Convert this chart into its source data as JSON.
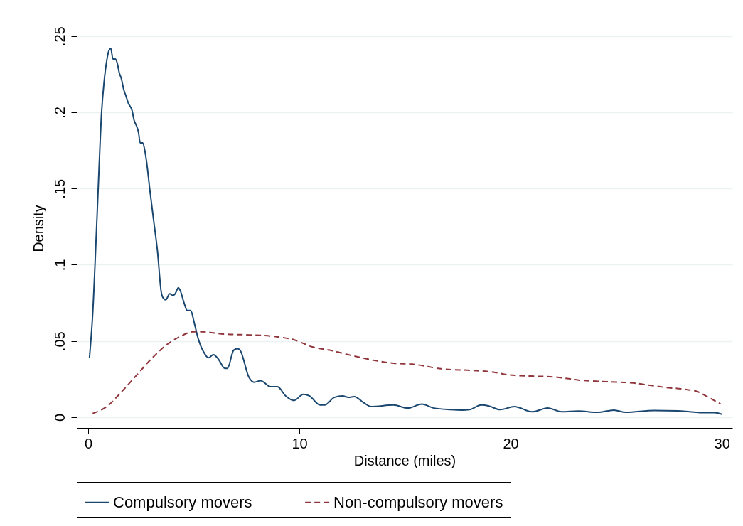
{
  "chart_data": {
    "type": "line",
    "xlabel": "Distance (miles)",
    "ylabel": "Density",
    "xlim": [
      -0.54,
      30.5
    ],
    "xticks": [
      0,
      10,
      20,
      30
    ],
    "ylim": [
      -0.007,
      0.255
    ],
    "yticks": [
      {
        "value": 0,
        "label": "0"
      },
      {
        "value": 0.05,
        "label": ".05"
      },
      {
        "value": 0.1,
        "label": ".1"
      },
      {
        "value": 0.15,
        "label": ".15"
      },
      {
        "value": 0.2,
        "label": ".2"
      },
      {
        "value": 0.25,
        "label": ".25"
      }
    ],
    "grid": "y",
    "legend": "bottom",
    "marker": "none",
    "series": [
      {
        "name": "Compulsory movers",
        "color": "#1a476f",
        "line_style": "solid",
        "x": [
          0.06,
          0.21,
          0.39,
          0.51,
          0.63,
          0.76,
          0.88,
          0.97,
          1.07,
          1.17,
          1.29,
          1.38,
          1.47,
          1.57,
          1.68,
          1.78,
          1.9,
          2.08,
          2.17,
          2.29,
          2.38,
          2.46,
          2.58,
          2.68,
          2.77,
          2.92,
          3.1,
          3.28,
          3.46,
          3.56,
          3.67,
          3.86,
          4.0,
          4.12,
          4.27,
          4.36,
          4.54,
          4.69,
          4.85,
          5.02,
          5.2,
          5.5,
          5.69,
          5.93,
          6.17,
          6.47,
          6.59,
          6.89,
          7.07,
          7.19,
          7.62,
          7.86,
          8.16,
          8.64,
          8.96,
          9.35,
          9.74,
          10.19,
          10.47,
          10.98,
          11.2,
          11.65,
          12.04,
          12.32,
          12.6,
          13.0,
          13.39,
          14.46,
          15.13,
          15.8,
          16.36,
          17.15,
          17.71,
          18.05,
          18.61,
          18.95,
          19.5,
          20.18,
          21.02,
          21.75,
          22.42,
          23.21,
          24.11,
          24.89,
          25.45,
          26.8,
          27.92,
          28.48,
          29.05,
          29.66,
          30.0
        ],
        "values": [
          0.039,
          0.067,
          0.122,
          0.162,
          0.199,
          0.221,
          0.234,
          0.24,
          0.242,
          0.235,
          0.235,
          0.232,
          0.226,
          0.222,
          0.215,
          0.211,
          0.206,
          0.201,
          0.195,
          0.191,
          0.187,
          0.18,
          0.18,
          0.175,
          0.167,
          0.149,
          0.129,
          0.109,
          0.082,
          0.078,
          0.077,
          0.081,
          0.08,
          0.081,
          0.085,
          0.083,
          0.075,
          0.07,
          0.07,
          0.062,
          0.052,
          0.042,
          0.039,
          0.041,
          0.038,
          0.032,
          0.032,
          0.044,
          0.045,
          0.044,
          0.026,
          0.023,
          0.024,
          0.02,
          0.02,
          0.014,
          0.011,
          0.015,
          0.014,
          0.008,
          0.008,
          0.013,
          0.014,
          0.013,
          0.0135,
          0.01,
          0.007,
          0.008,
          0.006,
          0.0086,
          0.006,
          0.005,
          0.0047,
          0.005,
          0.008,
          0.0075,
          0.005,
          0.007,
          0.0036,
          0.006,
          0.0036,
          0.0041,
          0.0032,
          0.0047,
          0.0032,
          0.0044,
          0.0042,
          0.0036,
          0.003,
          0.003,
          0.002
        ]
      },
      {
        "name": "Non-compulsory movers",
        "color": "#90353b",
        "line_style": "dashed",
        "x": [
          0.21,
          0.88,
          1.6,
          2.32,
          3.04,
          3.76,
          4.36,
          4.96,
          5.44,
          6.41,
          7.62,
          8.81,
          9.74,
          10.64,
          11.54,
          12.32,
          13.67,
          14.46,
          15.35,
          16.81,
          18.16,
          19.17,
          19.96,
          20.97,
          22.09,
          23.21,
          24.56,
          25.68,
          27.25,
          28.37,
          28.82,
          29.27,
          29.94
        ],
        "values": [
          0.0025,
          0.007,
          0.017,
          0.028,
          0.039,
          0.048,
          0.053,
          0.056,
          0.056,
          0.0545,
          0.054,
          0.053,
          0.0508,
          0.046,
          0.0437,
          0.041,
          0.037,
          0.0354,
          0.0348,
          0.0316,
          0.0307,
          0.0296,
          0.0277,
          0.027,
          0.0264,
          0.0244,
          0.0233,
          0.0226,
          0.0197,
          0.0181,
          0.017,
          0.0138,
          0.0087
        ]
      }
    ]
  }
}
